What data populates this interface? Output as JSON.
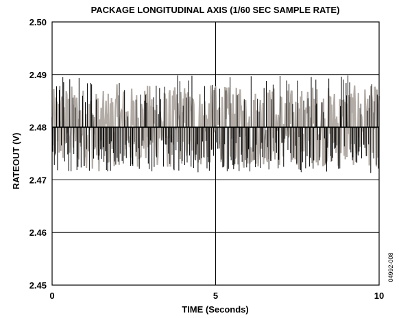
{
  "chart_data": {
    "type": "line",
    "title": "PACKAGE LONGITUDINAL AXIS (1/60 SEC SAMPLE RATE)",
    "xlabel": "TIME (Seconds)",
    "ylabel": "RATEOUT (V)",
    "xlim": [
      0,
      10
    ],
    "ylim": [
      2.45,
      2.5
    ],
    "x_ticks": [
      0,
      5,
      10
    ],
    "x_tick_labels": [
      "0",
      "5",
      "10"
    ],
    "y_ticks": [
      2.45,
      2.46,
      2.47,
      2.48,
      2.49,
      2.5
    ],
    "y_tick_labels": [
      "2.45",
      "2.46",
      "2.47",
      "2.48",
      "2.49",
      "2.50"
    ],
    "grid": true,
    "legend": "none",
    "series": [
      {
        "style": "filtered-noise",
        "color": "#b3aca6",
        "x": [
          0,
          0.5,
          1,
          1.5,
          2,
          2.5,
          3,
          3.5,
          4,
          4.5,
          5,
          5.5,
          6,
          6.5,
          7,
          7.5,
          8,
          8.5,
          9,
          9.5,
          10
        ],
        "y": [
          2.4795,
          2.4805,
          2.48,
          2.479,
          2.4805,
          2.48,
          2.4805,
          2.4795,
          2.4805,
          2.48,
          2.4805,
          2.48,
          2.4795,
          2.4805,
          2.48,
          2.4795,
          2.4805,
          2.48,
          2.48,
          2.4805,
          2.48
        ],
        "y_min": 2.4715,
        "y_max": 2.4908
      },
      {
        "style": "raw-spikes",
        "color": "#000000",
        "y_min": 2.4713,
        "y_max": 2.49
      },
      {
        "style": "mean-line",
        "color": "#000000",
        "y": 2.48
      }
    ],
    "annotations": [
      "04992-008"
    ]
  }
}
